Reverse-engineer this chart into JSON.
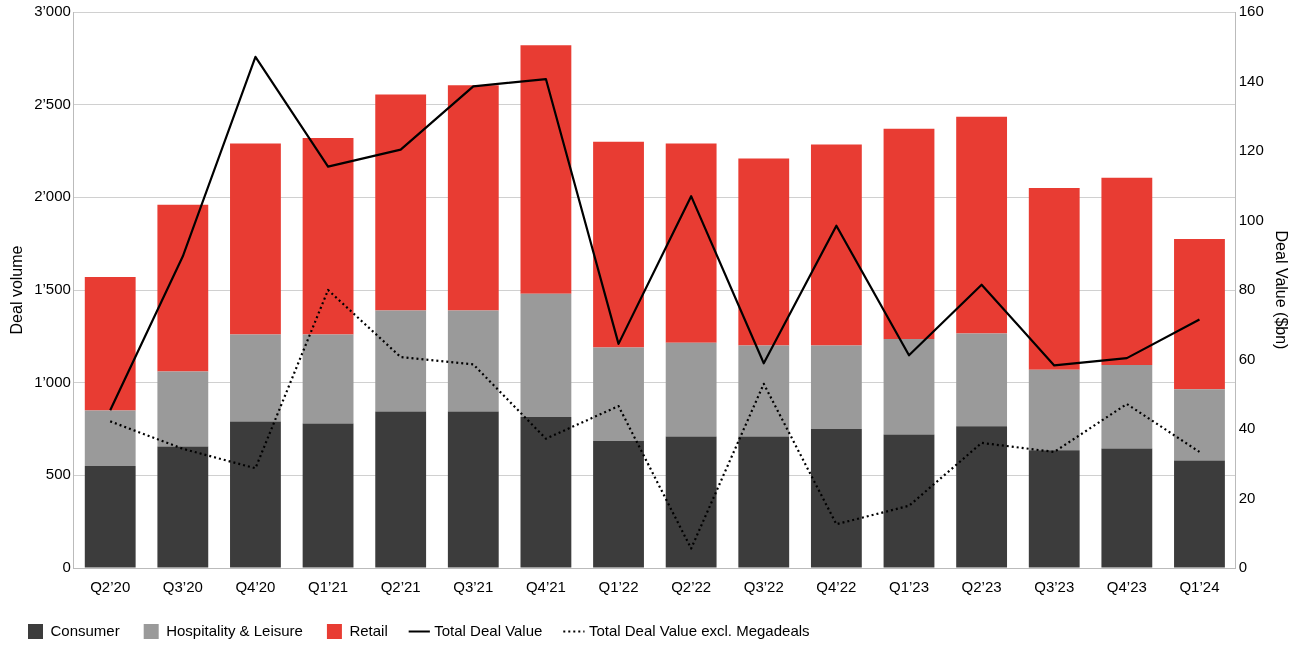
{
  "chart_data": {
    "type": "bar",
    "stacked": true,
    "ylabel": "Deal volume",
    "y2label": "Deal Value ($bn)",
    "categories": [
      "Q2’20",
      "Q3’20",
      "Q4’20",
      "Q1’21",
      "Q2’21",
      "Q3’21",
      "Q4’21",
      "Q1’22",
      "Q2’22",
      "Q3’22",
      "Q4’22",
      "Q1’23",
      "Q2’23",
      "Q3’23",
      "Q4’23",
      "Q1’24"
    ],
    "series": [
      {
        "name": "Consumer",
        "color": "#3c3c3c",
        "values": [
          550,
          655,
          790,
          780,
          845,
          845,
          815,
          685,
          710,
          710,
          750,
          720,
          765,
          635,
          645,
          580
        ]
      },
      {
        "name": "Hospitality & Leisure",
        "color": "#9a9a9a",
        "values": [
          300,
          405,
          470,
          480,
          545,
          545,
          665,
          505,
          505,
          490,
          450,
          515,
          500,
          435,
          450,
          385
        ]
      },
      {
        "name": "Retail",
        "color": "#e83c33",
        "values": [
          720,
          900,
          1030,
          1060,
          1165,
          1215,
          1340,
          1110,
          1075,
          1010,
          1085,
          1135,
          1170,
          980,
          1010,
          810
        ]
      },
      {
        "name": "Total Deal Value",
        "type": "line",
        "axis": "y2",
        "color": "#000000",
        "line_style": "solid",
        "values": [
          45.4,
          89.7,
          147.1,
          115.5,
          120.4,
          138.6,
          140.7,
          64.5,
          107,
          58.9,
          98.5,
          61.2,
          81.5,
          58.3,
          60.4,
          71.5
        ]
      },
      {
        "name": "Total Deal Value excl. Megadeals",
        "type": "line",
        "axis": "y2",
        "color": "#000000",
        "line_style": "dotted",
        "values": [
          42.2,
          34.3,
          28.7,
          80,
          60.7,
          58.6,
          37.2,
          46.6,
          5.6,
          53,
          12.6,
          17.9,
          36,
          33.4,
          47.2,
          33.4
        ]
      }
    ],
    "ylim": [
      0,
      3000
    ],
    "yticks": [
      0,
      500,
      {
        "value": 1000,
        "label": "1’000"
      },
      {
        "value": 1500,
        "label": "1’500"
      },
      {
        "value": 2000,
        "label": "2’000"
      },
      {
        "value": 2500,
        "label": "2’500"
      },
      {
        "value": 3000,
        "label": "3’000"
      }
    ],
    "y2lim": [
      0,
      160
    ],
    "y2ticks": [
      0,
      20,
      40,
      60,
      80,
      100,
      120,
      140,
      160
    ],
    "grid": "y",
    "legend": "bottom",
    "marker": "none"
  }
}
